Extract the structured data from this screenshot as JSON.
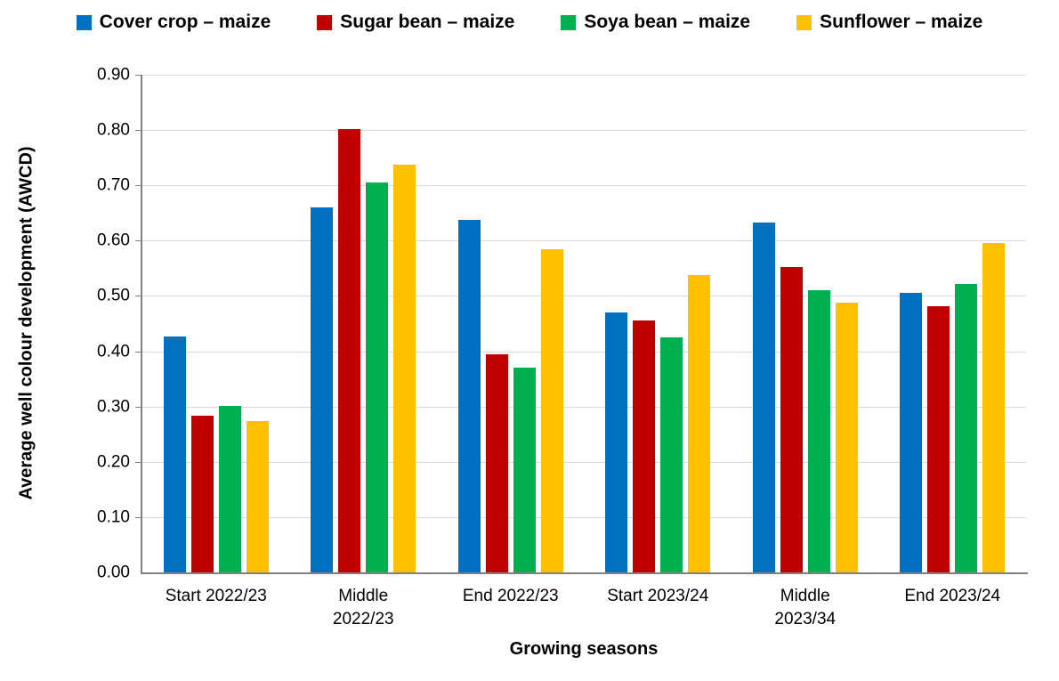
{
  "chart_data": {
    "type": "bar",
    "title": "",
    "xlabel": "Growing seasons",
    "ylabel": "Average well colour development (AWCD)",
    "ylim": [
      0,
      0.9
    ],
    "ytick_step": 0.1,
    "yticks": [
      "0.00",
      "0.10",
      "0.20",
      "0.30",
      "0.40",
      "0.50",
      "0.60",
      "0.70",
      "0.80",
      "0.90"
    ],
    "grid": true,
    "legend_position": "top",
    "categories": [
      "Start 2022/23",
      "Middle 2022/23",
      "End 2022/23",
      "Start 2023/24",
      "Middle 2023/34",
      "End 2023/24"
    ],
    "categories_display": [
      "Start 2022/23",
      "Middle\n2022/23",
      "End 2022/23",
      "Start 2023/24",
      "Middle\n2023/34",
      "End 2023/24"
    ],
    "series": [
      {
        "name": "Cover crop – maize",
        "color": "#0070C0",
        "values": [
          0.427,
          0.66,
          0.637,
          0.47,
          0.633,
          0.505
        ]
      },
      {
        "name": "Sugar bean – maize",
        "color": "#C00000",
        "values": [
          0.283,
          0.802,
          0.395,
          0.455,
          0.553,
          0.481
        ]
      },
      {
        "name": "Soya bean – maize",
        "color": "#00B050",
        "values": [
          0.301,
          0.705,
          0.37,
          0.425,
          0.51,
          0.522
        ]
      },
      {
        "name": "Sunflower – maize",
        "color": "#FFC000",
        "values": [
          0.273,
          0.737,
          0.585,
          0.537,
          0.488,
          0.596
        ]
      }
    ],
    "colors": {
      "axis_line": "#808080",
      "gridline": "#d9d9d9",
      "text": "#000000",
      "background": "#ffffff"
    }
  }
}
